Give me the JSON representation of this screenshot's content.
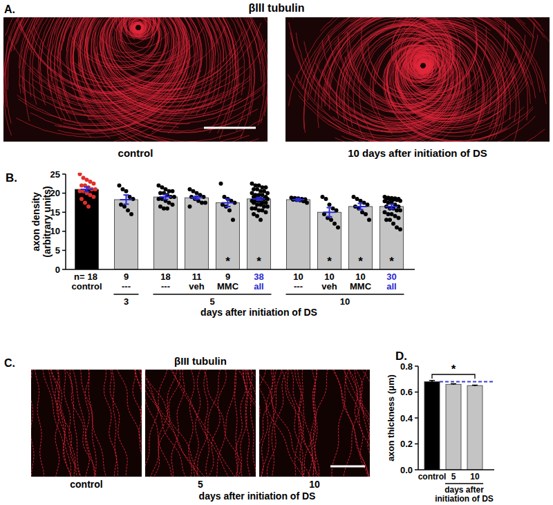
{
  "panels": {
    "A": {
      "label": "A.",
      "title": "βIII tubulin",
      "captions": [
        "control",
        "10 days after initiation of DS"
      ]
    },
    "C": {
      "label": "C.",
      "title": "βIII tubulin",
      "captions": [
        "control",
        "5",
        "10"
      ],
      "xlabel": "days after initiation of DS"
    }
  },
  "chart_data": [
    {
      "panel": "B.",
      "type": "bar",
      "ylabel": [
        "axon density",
        "(arbitrary units)"
      ],
      "xlabel": "days after initiation of DS",
      "categories": [
        "control",
        "---",
        "---",
        "veh",
        "MMC",
        "all",
        "---",
        "veh",
        "MMC",
        "all"
      ],
      "day": [
        null,
        3,
        5,
        5,
        5,
        5,
        10,
        10,
        10,
        10
      ],
      "n": {
        "label": "n=",
        "values": [
          18,
          9,
          18,
          11,
          9,
          38,
          10,
          10,
          10,
          30
        ],
        "colors": [
          "#000000",
          "#000000",
          "#000000",
          "#000000",
          "#000000",
          "#2a2acf",
          "#000000",
          "#000000",
          "#000000",
          "#2a2acf"
        ]
      },
      "values": [
        21,
        18.3,
        19,
        18.8,
        17.5,
        18.5,
        18.3,
        15,
        16.5,
        16.5
      ],
      "errors": [
        0.6,
        1.2,
        0.6,
        0.4,
        1.0,
        0.4,
        0.3,
        1.2,
        0.8,
        0.6
      ],
      "annotations": [
        null,
        null,
        null,
        null,
        "*",
        "*",
        null,
        "*",
        "*",
        "*"
      ],
      "colors": [
        "#000000",
        "#c4c4c4",
        "#c4c4c4",
        "#c4c4c4",
        "#c4c4c4",
        "#c4c4c4",
        "#c4c4c4",
        "#c4c4c4",
        "#c4c4c4",
        "#c4c4c4"
      ],
      "points": [
        {
          "color": "#e0302a",
          "values": [
            25,
            24,
            23.5,
            23,
            22.5,
            22,
            22,
            21.5,
            21,
            21,
            20.5,
            20.5,
            20,
            19.5,
            19,
            18.5,
            17.5,
            16.5
          ]
        },
        {
          "color": "#000000",
          "values": [
            22,
            21,
            20.5,
            19,
            18.5,
            17,
            16.5,
            15.5,
            14.5
          ]
        },
        {
          "color": "#000000",
          "values": [
            22,
            21.5,
            21,
            20.5,
            20.5,
            20,
            20,
            19.5,
            19,
            19,
            18.5,
            18.5,
            18,
            17.5,
            17,
            16.5,
            16,
            16
          ]
        },
        {
          "color": "#000000",
          "values": [
            21,
            20.5,
            20,
            19.5,
            19,
            19,
            18.5,
            18,
            17.5,
            17.5,
            16.5
          ]
        },
        {
          "color": "#000000",
          "values": [
            22.5,
            19,
            18.5,
            18,
            17.5,
            17,
            16.5,
            15.5,
            13
          ]
        },
        {
          "color": "#000000",
          "values": [
            22.5,
            22,
            22,
            21.5,
            21.5,
            21,
            21,
            20.5,
            20.5,
            20,
            20,
            19.5,
            19.5,
            19.5,
            19,
            19,
            19,
            18.5,
            18.5,
            18.5,
            18,
            18,
            18,
            17.5,
            17.5,
            17.5,
            17,
            17,
            16.5,
            16.5,
            16,
            16,
            15.5,
            15.5,
            15,
            14.5,
            14,
            13
          ]
        },
        {
          "color": "#000000",
          "values": [
            18.8,
            18.7,
            18.6,
            18.5,
            18.4,
            18.3,
            18.2,
            18.1,
            17.9,
            17.5
          ]
        },
        {
          "color": "#000000",
          "values": [
            19,
            18.5,
            17,
            16,
            15.5,
            14.5,
            13.5,
            13,
            12,
            11
          ]
        },
        {
          "color": "#000000",
          "values": [
            19,
            18.5,
            18,
            17.5,
            17,
            16.5,
            16,
            15,
            14.5,
            13
          ]
        },
        {
          "color": "#000000",
          "values": [
            19,
            18.8,
            18.7,
            18.6,
            18.5,
            18.5,
            18.4,
            18.3,
            18.2,
            18,
            17.9,
            17.5,
            17.5,
            17,
            16.5,
            16.5,
            16,
            16,
            15.5,
            15.5,
            15,
            14.5,
            14.5,
            14,
            13.5,
            13,
            13,
            12,
            11,
            10.5
          ]
        }
      ],
      "ylim": [
        0,
        25
      ],
      "yticks": [
        0,
        5,
        10,
        15,
        20,
        25
      ]
    },
    {
      "panel": "D.",
      "type": "bar",
      "ylabel": "axon thickness (μm)",
      "xlabel": [
        "days after",
        "initiation of DS"
      ],
      "categories": [
        "control",
        null,
        null
      ],
      "day": [
        null,
        5,
        10
      ],
      "values": [
        0.68,
        0.66,
        0.65
      ],
      "errors": [
        0.01,
        0.004,
        0.004
      ],
      "colors": [
        "#000000",
        "#c4c4c4",
        "#c4c4c4"
      ],
      "reference": {
        "value": 0.68,
        "color": "#3b3bd6",
        "line_style": "dashed"
      },
      "comparisons": [
        {
          "from": 0,
          "to": 2,
          "label": "*"
        }
      ],
      "ylim": [
        0,
        0.8
      ],
      "yticks": [
        {
          "value": 0,
          "label": "0.0"
        },
        {
          "value": 0.2,
          "label": "0.2"
        },
        {
          "value": 0.4,
          "label": "0.4"
        },
        {
          "value": 0.6,
          "label": "0.6"
        },
        {
          "value": 0.8,
          "label": "0.8"
        }
      ]
    }
  ]
}
